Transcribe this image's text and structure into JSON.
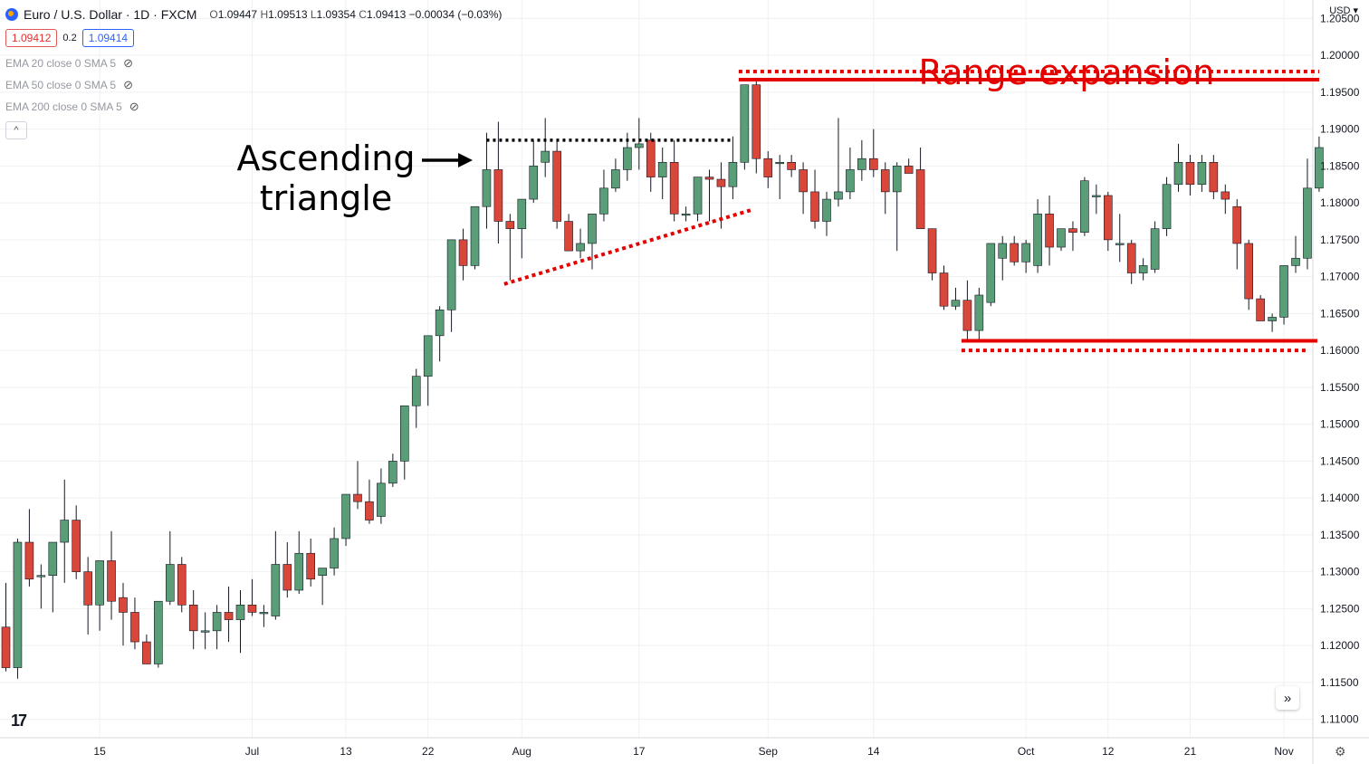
{
  "header": {
    "symbol": "Euro / U.S. Dollar · 1D · FXCM",
    "ohlc": {
      "open": "1.09447",
      "high": "1.09513",
      "low": "1.09354",
      "close": "1.09413",
      "change": "−0.00034 (−0.03%)"
    },
    "sell_price": "1.09412",
    "spread": "0.2",
    "buy_price": "1.09414",
    "currency": "USD"
  },
  "indicators": [
    {
      "label": "EMA 20 close 0 SMA 5",
      "icon": "eye-hidden-icon"
    },
    {
      "label": "EMA 50 close 0 SMA 5",
      "icon": "eye-hidden-icon"
    },
    {
      "label": "EMA 200 close 0 SMA 5",
      "icon": "eye-hidden-icon"
    }
  ],
  "annotations": {
    "triangle": "Ascending\ntriangle",
    "range": "Range expansion"
  },
  "chart_data": {
    "type": "candlestick",
    "colors": {
      "up": "#5a9e78",
      "down": "#d9473a",
      "wick": "#131722",
      "grid": "#eef0f3",
      "annotation": "#e50000"
    },
    "y_axis": {
      "min": 1.1075,
      "max": 1.2075,
      "ticks": [
        1.205,
        1.2,
        1.195,
        1.19,
        1.185,
        1.18,
        1.175,
        1.17,
        1.165,
        1.16,
        1.155,
        1.15,
        1.145,
        1.14,
        1.135,
        1.13,
        1.125,
        1.12,
        1.115,
        1.11
      ]
    },
    "x_labels": [
      {
        "bar": 8,
        "label": "15"
      },
      {
        "bar": 21,
        "label": "Jul"
      },
      {
        "bar": 29,
        "label": "13"
      },
      {
        "bar": 36,
        "label": "22"
      },
      {
        "bar": 44,
        "label": "Aug"
      },
      {
        "bar": 54,
        "label": "17"
      },
      {
        "bar": 65,
        "label": "Sep"
      },
      {
        "bar": 74,
        "label": "14"
      },
      {
        "bar": 87,
        "label": "Oct"
      },
      {
        "bar": 94,
        "label": "12"
      },
      {
        "bar": 101,
        "label": "21"
      },
      {
        "bar": 109,
        "label": "Nov"
      }
    ],
    "candles": [
      [
        1.1225,
        1.1285,
        1.1165,
        1.117
      ],
      [
        1.117,
        1.1345,
        1.1155,
        1.134
      ],
      [
        1.134,
        1.1385,
        1.128,
        1.129
      ],
      [
        1.1295,
        1.131,
        1.125,
        1.1295
      ],
      [
        1.1295,
        1.134,
        1.1245,
        1.134
      ],
      [
        1.134,
        1.1425,
        1.1285,
        1.137
      ],
      [
        1.137,
        1.139,
        1.129,
        1.13
      ],
      [
        1.13,
        1.132,
        1.1215,
        1.1255
      ],
      [
        1.1255,
        1.131,
        1.122,
        1.1315
      ],
      [
        1.1315,
        1.1355,
        1.1235,
        1.126
      ],
      [
        1.1265,
        1.1285,
        1.12,
        1.1245
      ],
      [
        1.1245,
        1.1265,
        1.1195,
        1.1205
      ],
      [
        1.1205,
        1.1215,
        1.1175,
        1.1175
      ],
      [
        1.1175,
        1.126,
        1.117,
        1.126
      ],
      [
        1.126,
        1.1355,
        1.1255,
        1.131
      ],
      [
        1.131,
        1.132,
        1.1245,
        1.1255
      ],
      [
        1.1255,
        1.1275,
        1.1195,
        1.122
      ],
      [
        1.122,
        1.1245,
        1.1195,
        1.122
      ],
      [
        1.122,
        1.1255,
        1.1195,
        1.1245
      ],
      [
        1.1245,
        1.128,
        1.1205,
        1.1235
      ],
      [
        1.1235,
        1.1275,
        1.119,
        1.1255
      ],
      [
        1.1255,
        1.129,
        1.124,
        1.1245
      ],
      [
        1.1245,
        1.1255,
        1.1225,
        1.1245
      ],
      [
        1.124,
        1.1355,
        1.1235,
        1.131
      ],
      [
        1.131,
        1.134,
        1.1265,
        1.1275
      ],
      [
        1.1275,
        1.1355,
        1.127,
        1.1325
      ],
      [
        1.1325,
        1.1345,
        1.128,
        1.129
      ],
      [
        1.1295,
        1.1305,
        1.1255,
        1.1305
      ],
      [
        1.1305,
        1.136,
        1.1295,
        1.1345
      ],
      [
        1.1345,
        1.1405,
        1.1335,
        1.1405
      ],
      [
        1.1405,
        1.145,
        1.1385,
        1.1395
      ],
      [
        1.1395,
        1.1425,
        1.1365,
        1.137
      ],
      [
        1.1375,
        1.144,
        1.1365,
        1.142
      ],
      [
        1.142,
        1.146,
        1.1415,
        1.145
      ],
      [
        1.145,
        1.1525,
        1.1425,
        1.1525
      ],
      [
        1.1525,
        1.1575,
        1.1495,
        1.1565
      ],
      [
        1.1565,
        1.162,
        1.1525,
        1.162
      ],
      [
        1.162,
        1.166,
        1.1585,
        1.1655
      ],
      [
        1.1655,
        1.175,
        1.1625,
        1.175
      ],
      [
        1.175,
        1.1765,
        1.1695,
        1.1715
      ],
      [
        1.1715,
        1.1795,
        1.171,
        1.1795
      ],
      [
        1.1795,
        1.1895,
        1.1765,
        1.1845
      ],
      [
        1.1845,
        1.191,
        1.1745,
        1.1775
      ],
      [
        1.1775,
        1.1785,
        1.1695,
        1.1765
      ],
      [
        1.1765,
        1.1805,
        1.1725,
        1.1805
      ],
      [
        1.1805,
        1.1885,
        1.18,
        1.185
      ],
      [
        1.1855,
        1.1915,
        1.1835,
        1.187
      ],
      [
        1.187,
        1.1885,
        1.1765,
        1.1775
      ],
      [
        1.1775,
        1.1785,
        1.1735,
        1.1735
      ],
      [
        1.1735,
        1.1765,
        1.1725,
        1.1745
      ],
      [
        1.1745,
        1.1785,
        1.171,
        1.1785
      ],
      [
        1.1785,
        1.1845,
        1.1775,
        1.182
      ],
      [
        1.182,
        1.186,
        1.1815,
        1.1845
      ],
      [
        1.1845,
        1.1895,
        1.183,
        1.1875
      ],
      [
        1.1875,
        1.1915,
        1.1845,
        1.188
      ],
      [
        1.1885,
        1.1895,
        1.1815,
        1.1835
      ],
      [
        1.1835,
        1.1875,
        1.1805,
        1.1855
      ],
      [
        1.1855,
        1.1885,
        1.1775,
        1.1785
      ],
      [
        1.1785,
        1.1795,
        1.1775,
        1.1785
      ],
      [
        1.1785,
        1.1835,
        1.1775,
        1.1835
      ],
      [
        1.1835,
        1.1845,
        1.1775,
        1.1832
      ],
      [
        1.1832,
        1.1855,
        1.1765,
        1.1822
      ],
      [
        1.1822,
        1.189,
        1.1805,
        1.1855
      ],
      [
        1.1855,
        1.1955,
        1.1845,
        1.196
      ],
      [
        1.196,
        1.1965,
        1.184,
        1.186
      ],
      [
        1.186,
        1.187,
        1.182,
        1.1835
      ],
      [
        1.1855,
        1.1865,
        1.1805,
        1.1855
      ],
      [
        1.1855,
        1.1865,
        1.1835,
        1.1845
      ],
      [
        1.1845,
        1.1855,
        1.1785,
        1.1815
      ],
      [
        1.1815,
        1.1845,
        1.1765,
        1.1775
      ],
      [
        1.1775,
        1.1815,
        1.1755,
        1.1805
      ],
      [
        1.1805,
        1.1915,
        1.1795,
        1.1815
      ],
      [
        1.1815,
        1.1875,
        1.1805,
        1.1845
      ],
      [
        1.1845,
        1.1885,
        1.183,
        1.186
      ],
      [
        1.186,
        1.19,
        1.1835,
        1.1845
      ],
      [
        1.1845,
        1.1855,
        1.1785,
        1.1815
      ],
      [
        1.1815,
        1.1855,
        1.1735,
        1.185
      ],
      [
        1.185,
        1.186,
        1.184,
        1.184
      ],
      [
        1.1845,
        1.1875,
        1.1765,
        1.1765
      ],
      [
        1.1765,
        1.1765,
        1.1695,
        1.1705
      ],
      [
        1.1705,
        1.1715,
        1.1655,
        1.166
      ],
      [
        1.166,
        1.1685,
        1.1655,
        1.1668
      ],
      [
        1.1668,
        1.1695,
        1.1615,
        1.1627
      ],
      [
        1.1627,
        1.1685,
        1.1615,
        1.1675
      ],
      [
        1.1665,
        1.1745,
        1.166,
        1.1745
      ],
      [
        1.1725,
        1.1755,
        1.1695,
        1.1745
      ],
      [
        1.1745,
        1.1755,
        1.1715,
        1.172
      ],
      [
        1.172,
        1.175,
        1.1705,
        1.1745
      ],
      [
        1.1715,
        1.1805,
        1.1705,
        1.1785
      ],
      [
        1.1785,
        1.181,
        1.1715,
        1.174
      ],
      [
        1.174,
        1.1765,
        1.1735,
        1.1765
      ],
      [
        1.1765,
        1.1775,
        1.1735,
        1.176
      ],
      [
        1.176,
        1.1835,
        1.1755,
        1.183
      ],
      [
        1.181,
        1.1825,
        1.1785,
        1.181
      ],
      [
        1.181,
        1.1815,
        1.1735,
        1.175
      ],
      [
        1.1745,
        1.1785,
        1.172,
        1.1745
      ],
      [
        1.1745,
        1.175,
        1.169,
        1.1705
      ],
      [
        1.1705,
        1.1725,
        1.1695,
        1.1715
      ],
      [
        1.171,
        1.1775,
        1.1705,
        1.1765
      ],
      [
        1.1765,
        1.1835,
        1.1755,
        1.1825
      ],
      [
        1.1825,
        1.188,
        1.1815,
        1.1855
      ],
      [
        1.1855,
        1.1865,
        1.181,
        1.1825
      ],
      [
        1.1825,
        1.1865,
        1.1815,
        1.1855
      ],
      [
        1.1855,
        1.1865,
        1.1805,
        1.1815
      ],
      [
        1.1815,
        1.1825,
        1.1785,
        1.1805
      ],
      [
        1.1795,
        1.1805,
        1.171,
        1.1745
      ],
      [
        1.1745,
        1.175,
        1.1655,
        1.167
      ],
      [
        1.167,
        1.1675,
        1.164,
        1.164
      ],
      [
        1.164,
        1.165,
        1.1625,
        1.1645
      ],
      [
        1.1645,
        1.1715,
        1.1635,
        1.1715
      ],
      [
        1.1715,
        1.1755,
        1.1705,
        1.1725
      ],
      [
        1.1725,
        1.186,
        1.171,
        1.182
      ],
      [
        1.182,
        1.189,
        1.1815,
        1.1875
      ]
    ]
  }
}
